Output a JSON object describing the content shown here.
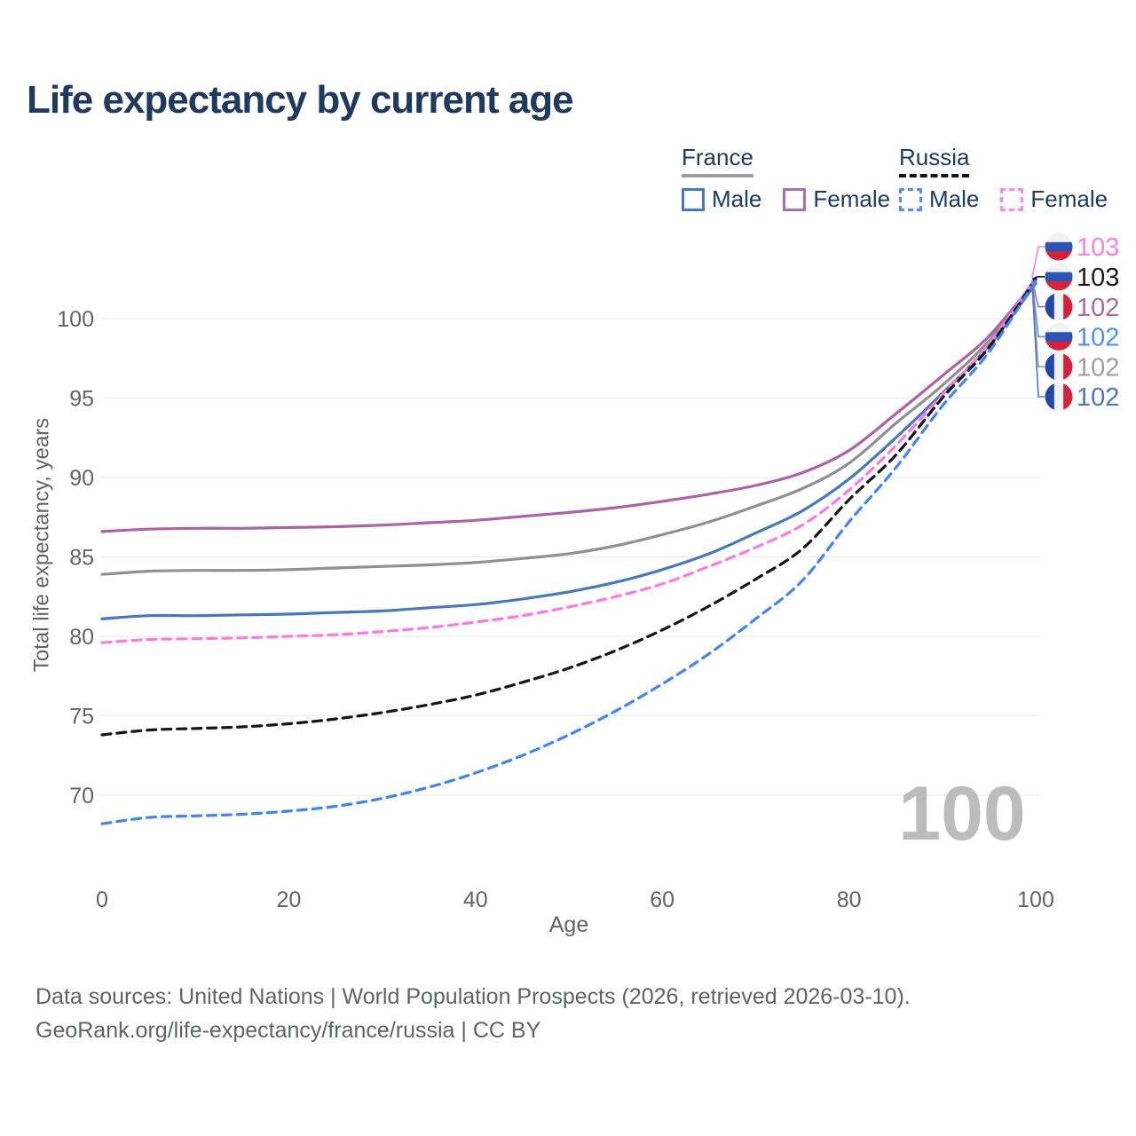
{
  "header": {
    "title": "Life expectancy by current age"
  },
  "legend": {
    "groups": [
      {
        "id": "france",
        "label": "France",
        "line_style": "solid",
        "underline_color": "#9e9e9e",
        "items": [
          {
            "id": "france_male",
            "label": "Male",
            "color": "#4878bc"
          },
          {
            "id": "france_female",
            "label": "Female",
            "color": "#b06cab"
          }
        ]
      },
      {
        "id": "russia",
        "label": "Russia",
        "line_style": "dashed",
        "underline_color": "#141414",
        "items": [
          {
            "id": "russia_male",
            "label": "Male",
            "color": "#4f8ef5"
          },
          {
            "id": "russia_female",
            "label": "Female",
            "color": "#ff85e8"
          }
        ]
      }
    ]
  },
  "chart_data": {
    "type": "line",
    "title": "Life expectancy by current age",
    "xlabel": "Age",
    "ylabel": "Total life expectancy, years",
    "x_ticks": [
      0,
      20,
      40,
      60,
      80,
      100
    ],
    "y_ticks": [
      70,
      75,
      80,
      85,
      90,
      95,
      100
    ],
    "xlim": [
      0,
      100
    ],
    "ylim": [
      67,
      103.5
    ],
    "grid": "horizontal",
    "legend_position": "top-right",
    "watermark": "100",
    "ages": [
      0,
      5,
      10,
      15,
      20,
      25,
      30,
      35,
      40,
      45,
      50,
      55,
      60,
      65,
      70,
      75,
      80,
      85,
      90,
      95,
      100
    ],
    "series": [
      {
        "id": "france_female",
        "name": "France Female",
        "color": "#ad62a7",
        "dash": "solid",
        "values": [
          86.6,
          86.75,
          86.8,
          86.8,
          86.85,
          86.9,
          87.0,
          87.15,
          87.3,
          87.55,
          87.8,
          88.1,
          88.5,
          88.95,
          89.5,
          90.3,
          91.7,
          94.0,
          96.4,
          98.9,
          102.4
        ]
      },
      {
        "id": "france_all",
        "name": "France Both sexes",
        "color": "#909090",
        "dash": "solid",
        "values": [
          83.9,
          84.1,
          84.15,
          84.15,
          84.2,
          84.3,
          84.4,
          84.5,
          84.65,
          84.9,
          85.2,
          85.7,
          86.4,
          87.2,
          88.2,
          89.3,
          90.9,
          93.4,
          95.8,
          98.6,
          102.3
        ]
      },
      {
        "id": "france_male",
        "name": "France Male",
        "color": "#4878bc",
        "dash": "solid",
        "values": [
          81.1,
          81.3,
          81.3,
          81.35,
          81.4,
          81.5,
          81.6,
          81.8,
          82.0,
          82.35,
          82.8,
          83.4,
          84.2,
          85.2,
          86.5,
          87.9,
          89.9,
          92.5,
          95.3,
          98.3,
          102.2
        ]
      },
      {
        "id": "russia_female",
        "name": "Russia Female",
        "color": "#ff79e1",
        "dash": "dashed",
        "values": [
          79.6,
          79.8,
          79.85,
          79.9,
          80.0,
          80.1,
          80.3,
          80.55,
          80.9,
          81.3,
          81.85,
          82.5,
          83.3,
          84.4,
          85.6,
          87.0,
          89.2,
          92.0,
          95.2,
          98.4,
          102.6
        ]
      },
      {
        "id": "russia_all",
        "name": "Russia Both sexes",
        "color": "#141414",
        "dash": "dashed",
        "values": [
          73.8,
          74.1,
          74.2,
          74.3,
          74.5,
          74.8,
          75.2,
          75.7,
          76.3,
          77.1,
          78.0,
          79.1,
          80.4,
          81.9,
          83.6,
          85.5,
          88.6,
          91.4,
          95.0,
          98.2,
          102.5
        ]
      },
      {
        "id": "russia_male",
        "name": "Russia Male",
        "color": "#3f86f0",
        "dash": "dashed",
        "values": [
          68.2,
          68.6,
          68.7,
          68.8,
          69.0,
          69.3,
          69.8,
          70.5,
          71.4,
          72.5,
          73.8,
          75.3,
          77.0,
          78.9,
          81.1,
          83.5,
          87.2,
          90.6,
          94.5,
          97.9,
          102.4
        ]
      }
    ]
  },
  "end_labels": [
    {
      "value": "103",
      "series": "russia_female",
      "flag": "russia",
      "color": "#ff7de1"
    },
    {
      "value": "103",
      "series": "russia_all",
      "flag": "russia",
      "color": "#1a1a1a"
    },
    {
      "value": "102",
      "series": "france_female",
      "flag": "france",
      "color": "#a869a8"
    },
    {
      "value": "102",
      "series": "russia_male",
      "flag": "russia",
      "color": "#4d8ef7"
    },
    {
      "value": "102",
      "series": "france_all",
      "flag": "france",
      "color": "#9e9e9e"
    },
    {
      "value": "102",
      "series": "france_male",
      "flag": "france",
      "color": "#4a77bd"
    }
  ],
  "flags": {
    "russia": {
      "direction": "horizontal",
      "stripes": [
        "#f2f2f3",
        "#2b52b7",
        "#d6213a"
      ]
    },
    "france": {
      "direction": "vertical",
      "stripes": [
        "#2346a8",
        "#f2f2f3",
        "#d6213a"
      ]
    }
  },
  "footer": {
    "line1": "Data sources: United Nations | World Population Prospects (2026, retrieved 2026-03-10).",
    "line2": "GeoRank.org/life-expectancy/france/russia | CC BY"
  }
}
